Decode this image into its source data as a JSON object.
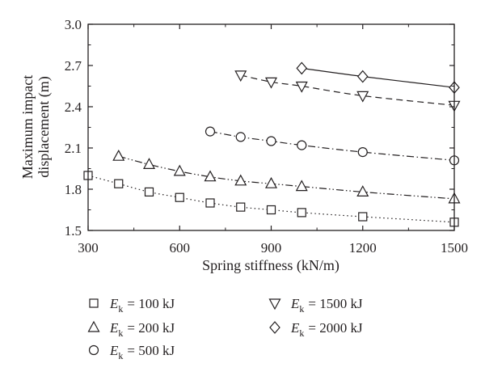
{
  "chart_data": {
    "type": "line",
    "title": "",
    "xlabel": "Spring stiffness (kN/m)",
    "ylabel": "Maximum impact displacement (m)",
    "ylabel_lines": [
      "Maximum impact",
      "displacement (m)"
    ],
    "xlim": [
      300,
      1500
    ],
    "ylim": [
      1.5,
      3.0
    ],
    "xticks": [
      300,
      600,
      900,
      1200,
      1500
    ],
    "yticks": [
      1.5,
      1.8,
      2.1,
      2.4,
      2.7,
      3.0
    ],
    "xtick_labels": [
      "300",
      "600",
      "900",
      "1200",
      "1500"
    ],
    "ytick_labels": [
      "1.5",
      "1.8",
      "2.1",
      "2.4",
      "2.7",
      "3.0"
    ],
    "grid": false,
    "legend_position": "below",
    "series": [
      {
        "name": "Ek = 100kJ",
        "legend_var": "E",
        "legend_sub": "k",
        "legend_value": "= 100 kJ",
        "marker": "square",
        "line_style": "dotted",
        "x": [
          300,
          400,
          500,
          600,
          700,
          800,
          900,
          1000,
          1200,
          1500
        ],
        "y": [
          1.9,
          1.84,
          1.78,
          1.74,
          1.7,
          1.67,
          1.65,
          1.63,
          1.6,
          1.56
        ]
      },
      {
        "name": "Ek = 200kJ",
        "legend_var": "E",
        "legend_sub": "k",
        "legend_value": "= 200 kJ",
        "marker": "triangle-up",
        "line_style": "dash-dot-dot",
        "x": [
          400,
          500,
          600,
          700,
          800,
          900,
          1000,
          1200,
          1500
        ],
        "y": [
          2.04,
          1.98,
          1.93,
          1.89,
          1.86,
          1.84,
          1.82,
          1.78,
          1.73
        ]
      },
      {
        "name": "Ek = 500kJ",
        "legend_var": "E",
        "legend_sub": "k",
        "legend_value": "= 500 kJ",
        "marker": "circle",
        "line_style": "dash-dot",
        "x": [
          700,
          800,
          900,
          1000,
          1200,
          1500
        ],
        "y": [
          2.22,
          2.18,
          2.15,
          2.12,
          2.07,
          2.01
        ]
      },
      {
        "name": "Ek = 1500kJ",
        "legend_var": "E",
        "legend_sub": "k",
        "legend_value": "= 1500 kJ",
        "marker": "triangle-down",
        "line_style": "dashed",
        "x": [
          800,
          900,
          1000,
          1200,
          1500
        ],
        "y": [
          2.63,
          2.58,
          2.55,
          2.48,
          2.41
        ]
      },
      {
        "name": "Ek = 2000kJ",
        "legend_var": "E",
        "legend_sub": "k",
        "legend_value": "= 2000 kJ",
        "marker": "diamond",
        "line_style": "solid",
        "x": [
          1000,
          1200,
          1500
        ],
        "y": [
          2.68,
          2.62,
          2.54
        ]
      }
    ]
  }
}
